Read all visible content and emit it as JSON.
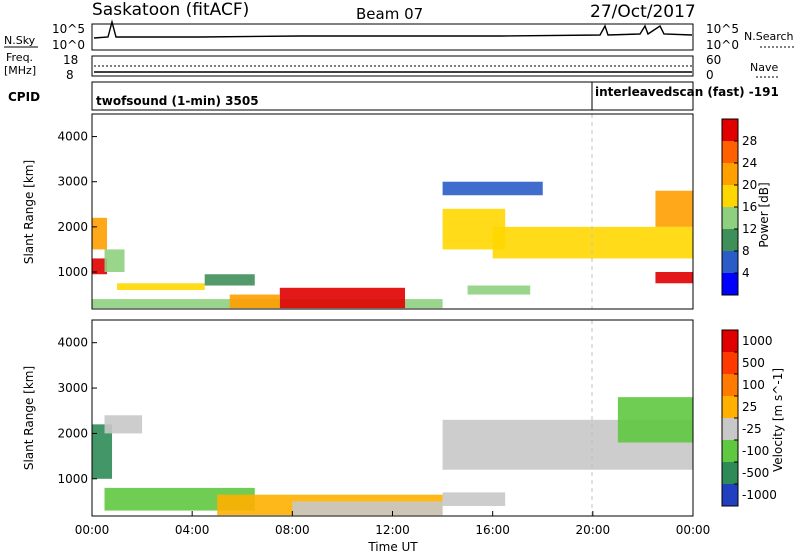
{
  "header": {
    "station": "Saskatoon (fitACF)",
    "beam": "Beam 07",
    "date": "27/Oct/2017"
  },
  "noise_panel": {
    "left_label": "N.Sky",
    "left_ticks": [
      "10^5",
      "10^0"
    ],
    "right_label": "N.Search",
    "right_ticks": [
      "10^5",
      "10^0"
    ]
  },
  "freq_panel": {
    "left_label_1": "Freq.",
    "left_label_2": "[MHz]",
    "left_ticks": [
      "18",
      "8"
    ],
    "right_label": "Nave",
    "right_ticks": [
      "60",
      "0"
    ]
  },
  "cpid_panel": {
    "label": "CPID",
    "mode_1": "twofsound (1-min) 3505",
    "mode_2": "interleavedscan (fast) -191"
  },
  "chart_data": [
    {
      "type": "heatmap",
      "name": "power",
      "ylabel": "Slant Range [km]",
      "ylim": [
        180,
        4500
      ],
      "yticks": [
        "1000",
        "2000",
        "3000",
        "4000"
      ],
      "ytick_values": [
        1000,
        2000,
        3000,
        4000
      ],
      "xlim": [
        0,
        24
      ],
      "colorbar": {
        "label": "Power [dB]",
        "ticks": [
          "4",
          "8",
          "12",
          "16",
          "20",
          "24",
          "28"
        ],
        "colors": [
          "#0000ff",
          "#2a5cc8",
          "#3f8f5a",
          "#8fd080",
          "#ffd700",
          "#ff9f00",
          "#ff6000",
          "#e00000"
        ]
      },
      "regions": [
        {
          "t0": 0.0,
          "t1": 0.6,
          "r0": 950,
          "r1": 1300,
          "level": 7
        },
        {
          "t0": 0.0,
          "t1": 0.6,
          "r0": 1500,
          "r1": 2200,
          "level": 5
        },
        {
          "t0": 0.5,
          "t1": 1.3,
          "r0": 1000,
          "r1": 1500,
          "level": 3
        },
        {
          "t0": 1.0,
          "t1": 4.5,
          "r0": 600,
          "r1": 750,
          "level": 4
        },
        {
          "t0": 0.0,
          "t1": 14.0,
          "r0": 200,
          "r1": 400,
          "level": 3
        },
        {
          "t0": 7.5,
          "t1": 12.5,
          "r0": 200,
          "r1": 650,
          "level": 7
        },
        {
          "t0": 5.5,
          "t1": 7.5,
          "r0": 200,
          "r1": 500,
          "level": 5
        },
        {
          "t0": 4.5,
          "t1": 6.5,
          "r0": 700,
          "r1": 950,
          "level": 2
        },
        {
          "t0": 14.0,
          "t1": 16.5,
          "r0": 1500,
          "r1": 2400,
          "level": 4
        },
        {
          "t0": 16.0,
          "t1": 24.0,
          "r0": 1300,
          "r1": 2000,
          "level": 4
        },
        {
          "t0": 15.0,
          "t1": 17.5,
          "r0": 500,
          "r1": 700,
          "level": 3
        },
        {
          "t0": 22.5,
          "t1": 24.0,
          "r0": 750,
          "r1": 1000,
          "level": 7
        },
        {
          "t0": 14.0,
          "t1": 18.0,
          "r0": 2700,
          "r1": 3000,
          "level": 1
        },
        {
          "t0": 22.5,
          "t1": 24.0,
          "r0": 2000,
          "r1": 2800,
          "level": 5
        }
      ]
    },
    {
      "type": "heatmap",
      "name": "velocity",
      "ylabel": "Slant Range [km]",
      "ylim": [
        180,
        4500
      ],
      "yticks": [
        "1000",
        "2000",
        "3000",
        "4000"
      ],
      "ytick_values": [
        1000,
        2000,
        3000,
        4000
      ],
      "xlim": [
        0,
        24
      ],
      "xticks": [
        "00:00",
        "04:00",
        "08:00",
        "12:00",
        "16:00",
        "20:00",
        "00:00"
      ],
      "xtick_values": [
        0,
        4,
        8,
        12,
        16,
        20,
        24
      ],
      "xlabel": "Time UT",
      "colorbar": {
        "label": "Velocity [m s^-1]",
        "ticks": [
          "1000",
          "500",
          "100",
          "25",
          "-25",
          "-100",
          "-500",
          "-1000"
        ],
        "colors": [
          "#2040c0",
          "#2e8b57",
          "#60c840",
          "#c8c8c8",
          "#ffb000",
          "#ff7a00",
          "#ff3a00",
          "#e00000"
        ]
      },
      "regions": [
        {
          "t0": 0.0,
          "t1": 0.8,
          "r0": 1000,
          "r1": 2200,
          "level": 1
        },
        {
          "t0": 0.5,
          "t1": 6.5,
          "r0": 300,
          "r1": 800,
          "level": 2
        },
        {
          "t0": 5.0,
          "t1": 14.0,
          "r0": 200,
          "r1": 650,
          "level": 4
        },
        {
          "t0": 8.0,
          "t1": 14.0,
          "r0": 200,
          "r1": 500,
          "level": 3
        },
        {
          "t0": 14.0,
          "t1": 24.0,
          "r0": 1200,
          "r1": 2300,
          "level": 3
        },
        {
          "t0": 14.0,
          "t1": 16.5,
          "r0": 400,
          "r1": 700,
          "level": 3
        },
        {
          "t0": 21.0,
          "t1": 24.0,
          "r0": 1800,
          "r1": 2800,
          "level": 2
        },
        {
          "t0": 0.5,
          "t1": 2.0,
          "r0": 2000,
          "r1": 2400,
          "level": 3
        }
      ]
    }
  ]
}
